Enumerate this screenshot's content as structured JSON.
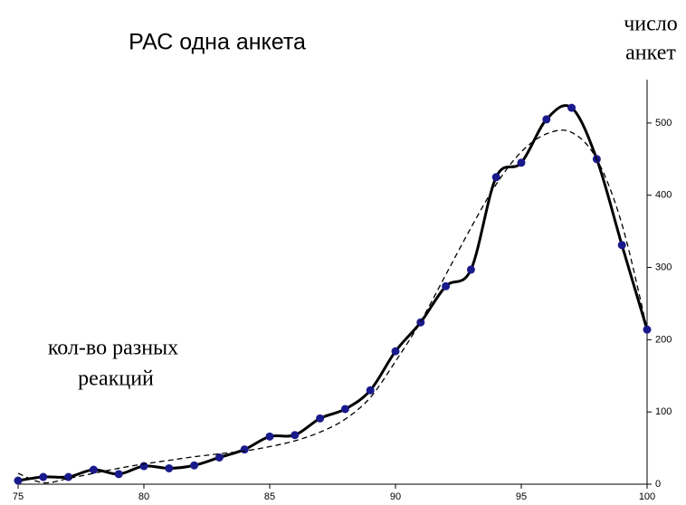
{
  "chart_data": {
    "type": "line",
    "title": "РАС одна анкета",
    "y_label": [
      "число",
      "анкет"
    ],
    "x_label": [
      "кол-во разных",
      "реакций"
    ],
    "x": [
      75,
      76,
      77,
      78,
      79,
      80,
      81,
      82,
      83,
      84,
      85,
      86,
      87,
      88,
      89,
      90,
      91,
      92,
      93,
      94,
      95,
      96,
      97,
      98,
      99,
      100
    ],
    "series": [
      {
        "color": "#000000",
        "marker_color": "#1a1a8c",
        "dashed": false,
        "markers": true,
        "values": [
          5,
          10,
          10,
          20,
          14,
          25,
          22,
          26,
          37,
          48,
          66,
          68,
          91,
          104,
          130,
          184,
          224,
          274,
          297,
          425,
          445,
          505,
          521,
          450,
          331,
          214
        ]
      },
      {
        "color": "#000000",
        "dashed": true,
        "markers": false,
        "values": [
          15,
          2,
          8,
          15,
          22,
          28,
          33,
          38,
          42,
          46,
          52,
          60,
          72,
          90,
          120,
          170,
          225,
          290,
          355,
          415,
          460,
          485,
          487,
          450,
          360,
          215
        ]
      }
    ],
    "xlim": [
      75,
      100
    ],
    "xticks": [
      75,
      80,
      85,
      90,
      95,
      100
    ],
    "ylim": [
      0,
      560
    ],
    "yticks": [
      0,
      100,
      200,
      300,
      400,
      500
    ],
    "grid": false,
    "y_axis_side": "right"
  }
}
